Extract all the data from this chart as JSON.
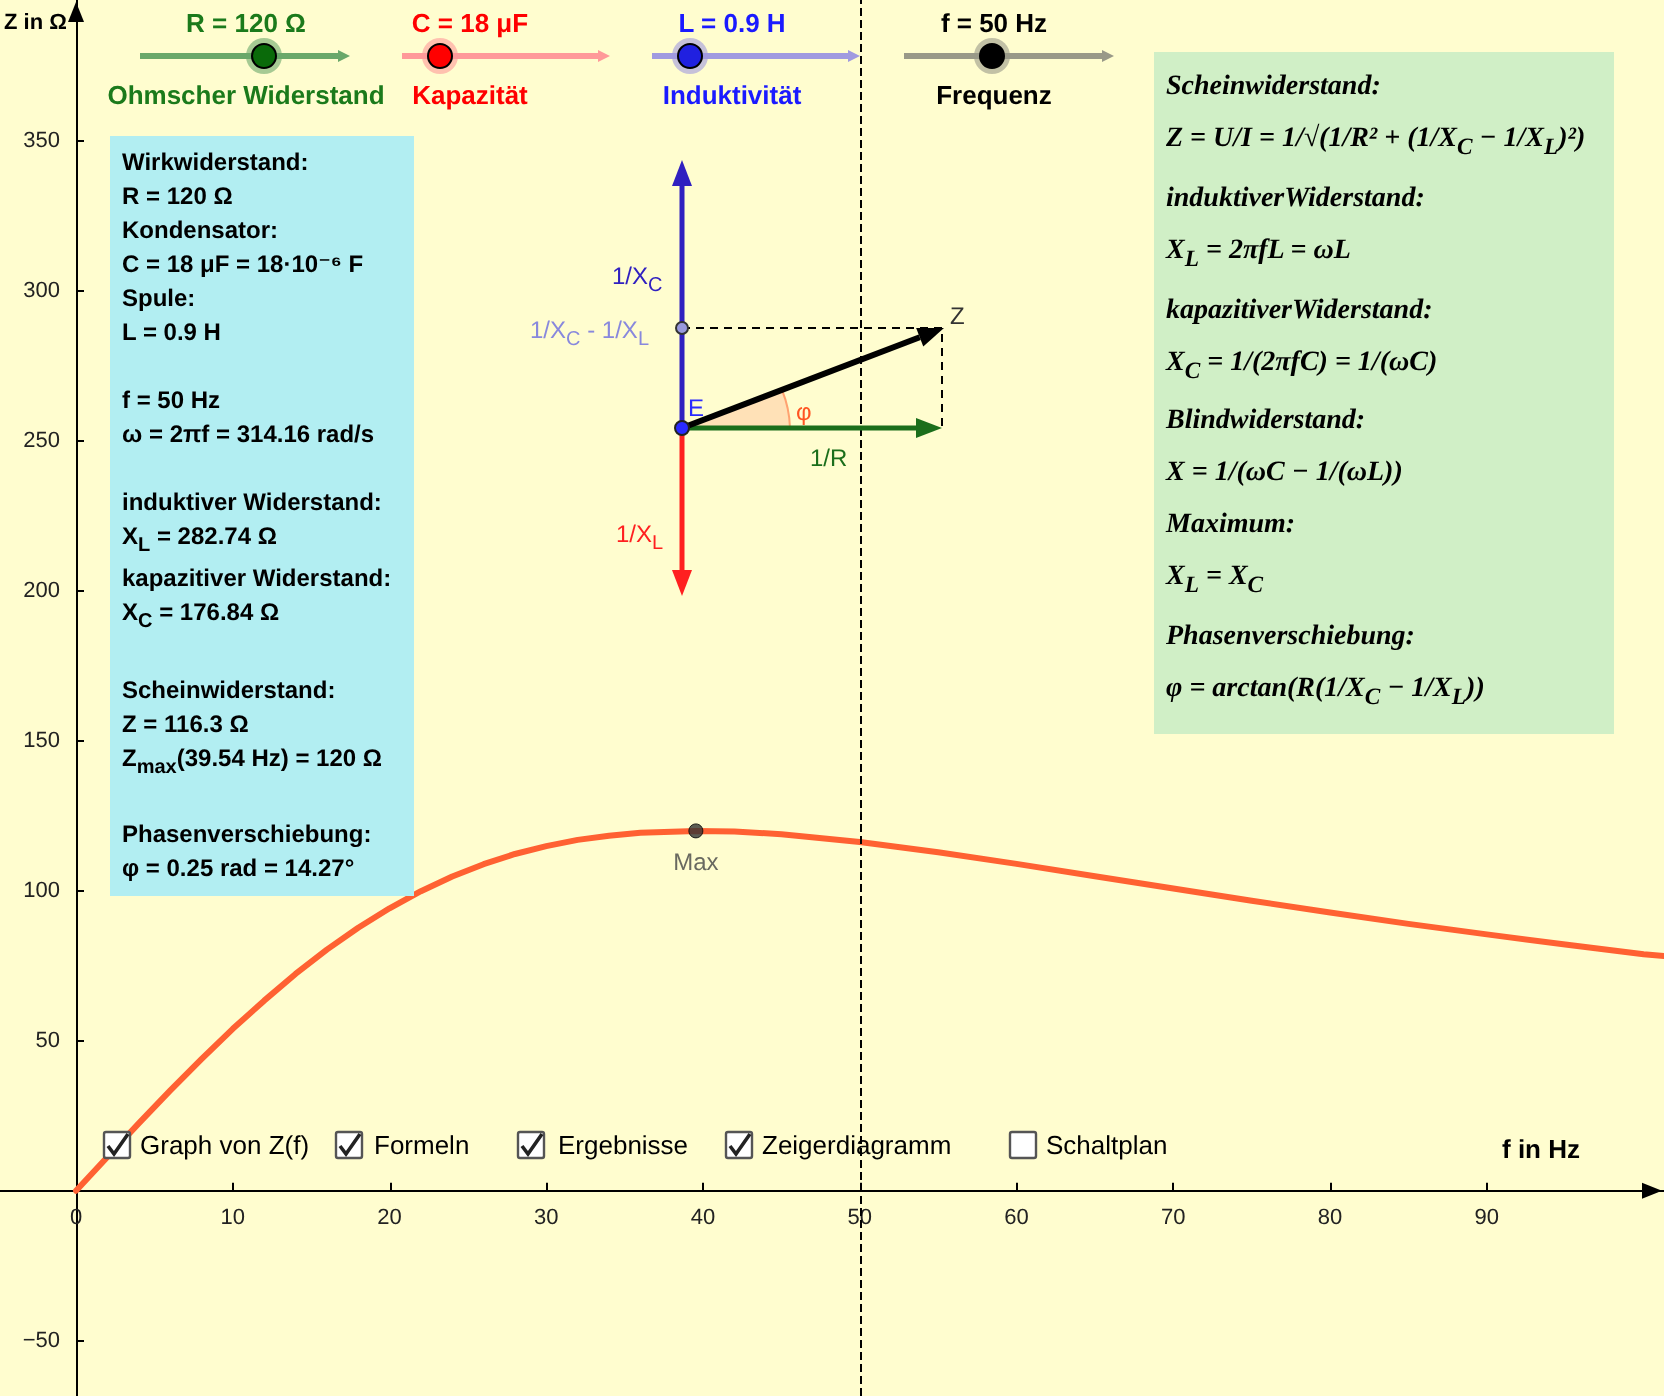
{
  "chart_data": {
    "type": "line",
    "xlabel": "f in Hz",
    "ylabel": "Z in Ω",
    "xlim": [
      -4.85,
      101.3
    ],
    "ylim": [
      -68.4,
      397
    ],
    "xticks": [
      0,
      10,
      20,
      30,
      40,
      50,
      60,
      70,
      80,
      90
    ],
    "yticks": [
      -50,
      50,
      100,
      150,
      200,
      250,
      300,
      350
    ],
    "series": [
      {
        "type": "line",
        "color": "#ff6132",
        "marker": "none",
        "x": [
          0,
          2,
          4,
          6,
          8,
          10,
          12,
          14,
          16,
          18,
          20,
          22,
          24,
          26,
          28,
          30,
          32,
          34,
          36,
          39.54,
          42,
          45,
          50,
          55,
          60,
          65,
          70,
          75,
          80,
          85,
          90,
          95,
          100,
          101.3
        ],
        "values": [
          0,
          11.3,
          22.5,
          33.4,
          43.9,
          54.0,
          63.4,
          72.3,
          80.4,
          87.7,
          94.2,
          99.9,
          104.8,
          108.9,
          112.3,
          114.9,
          117.0,
          118.4,
          119.4,
          120,
          119.8,
          118.9,
          116.3,
          112.9,
          109.0,
          104.9,
          100.8,
          96.7,
          92.8,
          89.0,
          85.5,
          82.1,
          78.9,
          78.3
        ]
      },
      {
        "type": "scatter",
        "name": "Max",
        "color": "#333333",
        "marker": "circle",
        "x": [
          39.54
        ],
        "values": [
          120
        ]
      }
    ],
    "ref_lines": [
      {
        "axis": "x",
        "value": 50,
        "color": "#000000",
        "line_style": "dashed"
      }
    ],
    "annotations": [
      "Wirkwiderstand:\nR = 120 Ω\nKondensator:\nC = 18 μF = 18·10⁻⁶ F\nSpule:\nL = 0.9 H\n\nf = 50 Hz\nω = 2πf = 314.16 rad/s\n\ninduktiver Widerstand:\nX$_{L}$ = 282.74 Ω\nkapazitiver Widerstand:\nX$_{C}$ = 176.84 Ω\n\nScheinwiderstand:\nZ = 116.3 Ω\nZ$_{max}$(39.54 Hz) = 120 Ω\n\nPhasenverschiebung:\nφ = 0.25 rad = 14.27°",
      "Scheinwiderstand:\nZ = U/I = 1/√(1/R² + (1/X$_{C}$ − 1/X$_{L}$)²)\ninduktiverWiderstand:\nX$_{L}$ = 2πfL = ωL\nkapazitiverWiderstand:\nX$_{C}$ = 1/(2πfC) = 1/(ωC)\nBlindwiderstand:\nX = 1/(ωC − 1/(ωL))\nMaximum:\nX$_{L}$ = X$_{C}$\nPhasenverschiebung:\nφ = arctan(R(1/X$_{C}$ − 1/X$_{L}$))",
      "R = 120 Ω",
      "Ohmscher Widerstand",
      "C = 18 μF",
      "Kapazität",
      "L = 0.9 H",
      "Induktivität",
      "f = 50 Hz",
      "Frequenz",
      "Graph von Z(f)",
      "Formeln",
      "Ergebnisse",
      "Zeigerdiagramm",
      "Schaltplan",
      "1/X$_{C}$",
      "1/X$_{C}$ - 1/X$_{L}$",
      "E",
      "φ",
      "1/R",
      "1/X$_{L}$",
      "Z"
    ]
  }
}
